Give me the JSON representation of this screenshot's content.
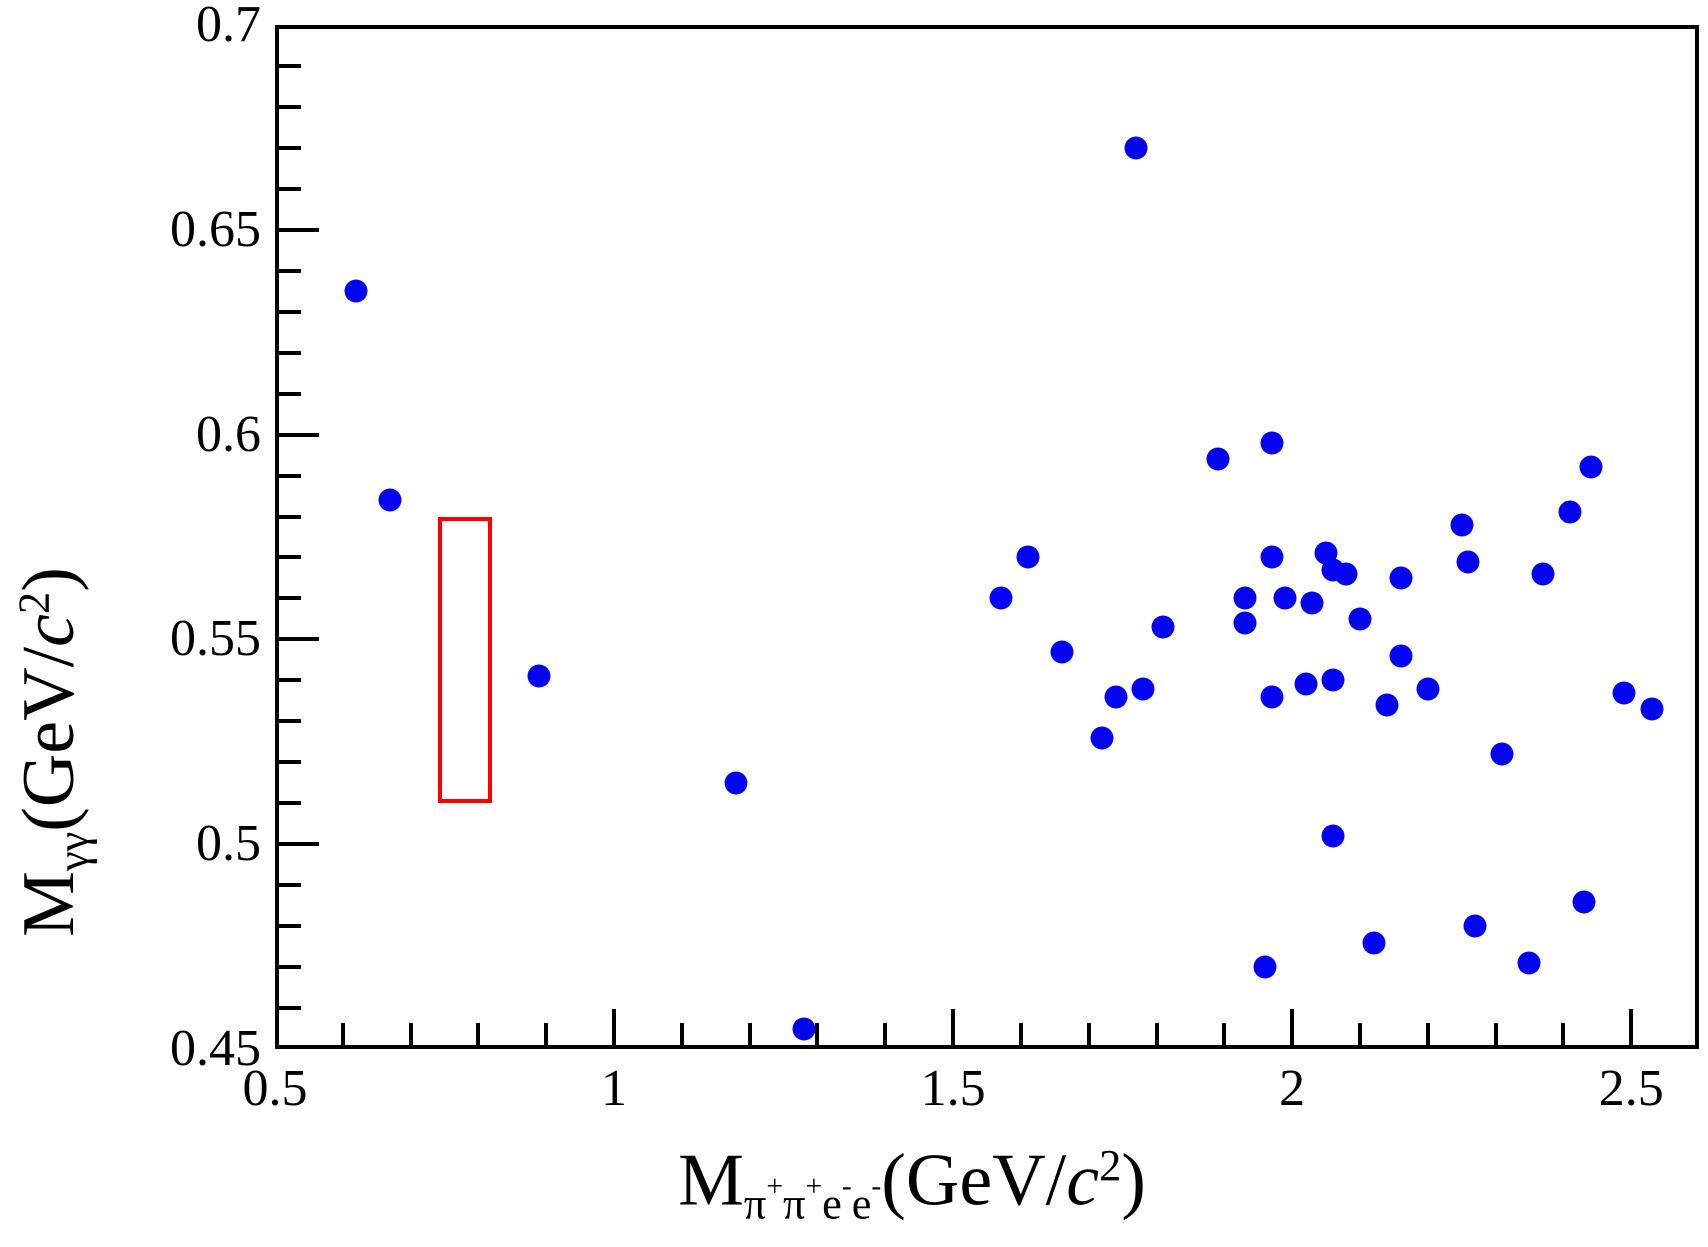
{
  "figure": {
    "background": "#ffffff",
    "marker_color": "#0404f0",
    "signal_box_color": "#ff0000",
    "axis_color": "#000000"
  },
  "chart_data": {
    "type": "scatter",
    "title": "",
    "grid": false,
    "legend": null,
    "x_range": [
      0.5,
      2.6
    ],
    "y_range": [
      0.45,
      0.7
    ],
    "x_minor_step": 0.1,
    "y_minor_step": 0.01,
    "x_major_ticks": [
      {
        "v": 0.5,
        "label": "0.5"
      },
      {
        "v": 1.0,
        "label": "1"
      },
      {
        "v": 1.5,
        "label": "1.5"
      },
      {
        "v": 2.0,
        "label": "2"
      },
      {
        "v": 2.5,
        "label": "2.5"
      }
    ],
    "y_major_ticks": [
      {
        "v": 0.45,
        "label": "0.45"
      },
      {
        "v": 0.5,
        "label": "0.5"
      },
      {
        "v": 0.55,
        "label": "0.55"
      },
      {
        "v": 0.6,
        "label": "0.6"
      },
      {
        "v": 0.65,
        "label": "0.65"
      },
      {
        "v": 0.7,
        "label": "0.7"
      }
    ],
    "xlabel_text": "M_{pi+pi+e-e-}(GeV/c^2)",
    "ylabel_text": "M_{gamma gamma}(GeV/c^2)",
    "xlabel_parts": [
      {
        "t": "M"
      },
      {
        "t": "π",
        "style": "sub"
      },
      {
        "t": "+",
        "style": "subsup"
      },
      {
        "t": "π",
        "style": "sub"
      },
      {
        "t": "+",
        "style": "subsup"
      },
      {
        "t": "e",
        "style": "sub"
      },
      {
        "t": "-",
        "style": "subsup"
      },
      {
        "t": "e",
        "style": "sub"
      },
      {
        "t": "-",
        "style": "subsup"
      },
      {
        "t": "(GeV/"
      },
      {
        "t": "c",
        "style": "italic"
      },
      {
        "t": "2",
        "style": "sup"
      },
      {
        "t": ")"
      }
    ],
    "ylabel_parts": [
      {
        "t": "M"
      },
      {
        "t": "γγ",
        "style": "sub"
      },
      {
        "t": "(GeV/"
      },
      {
        "t": "c",
        "style": "italic"
      },
      {
        "t": "2",
        "style": "sup"
      },
      {
        "t": ")"
      }
    ],
    "signal_box": {
      "x1": 0.74,
      "x2": 0.82,
      "y1": 0.51,
      "y2": 0.58
    },
    "points": [
      [
        0.62,
        0.635
      ],
      [
        0.67,
        0.584
      ],
      [
        0.89,
        0.541
      ],
      [
        1.18,
        0.515
      ],
      [
        1.28,
        0.455
      ],
      [
        1.57,
        0.56
      ],
      [
        1.61,
        0.57
      ],
      [
        1.66,
        0.547
      ],
      [
        1.72,
        0.526
      ],
      [
        1.74,
        0.536
      ],
      [
        1.77,
        0.67
      ],
      [
        1.78,
        0.538
      ],
      [
        1.81,
        0.553
      ],
      [
        1.89,
        0.594
      ],
      [
        1.93,
        0.56
      ],
      [
        1.93,
        0.554
      ],
      [
        1.96,
        0.47
      ],
      [
        1.97,
        0.598
      ],
      [
        1.97,
        0.57
      ],
      [
        1.97,
        0.536
      ],
      [
        1.99,
        0.56
      ],
      [
        2.02,
        0.539
      ],
      [
        2.03,
        0.559
      ],
      [
        2.05,
        0.571
      ],
      [
        2.06,
        0.567
      ],
      [
        2.08,
        0.566
      ],
      [
        2.06,
        0.54
      ],
      [
        2.06,
        0.502
      ],
      [
        2.1,
        0.555
      ],
      [
        2.12,
        0.476
      ],
      [
        2.14,
        0.534
      ],
      [
        2.16,
        0.565
      ],
      [
        2.16,
        0.546
      ],
      [
        2.2,
        0.538
      ],
      [
        2.25,
        0.578
      ],
      [
        2.26,
        0.569
      ],
      [
        2.27,
        0.48
      ],
      [
        2.31,
        0.522
      ],
      [
        2.35,
        0.471
      ],
      [
        2.37,
        0.566
      ],
      [
        2.41,
        0.581
      ],
      [
        2.43,
        0.486
      ],
      [
        2.44,
        0.592
      ],
      [
        2.49,
        0.537
      ],
      [
        2.53,
        0.533
      ]
    ]
  }
}
